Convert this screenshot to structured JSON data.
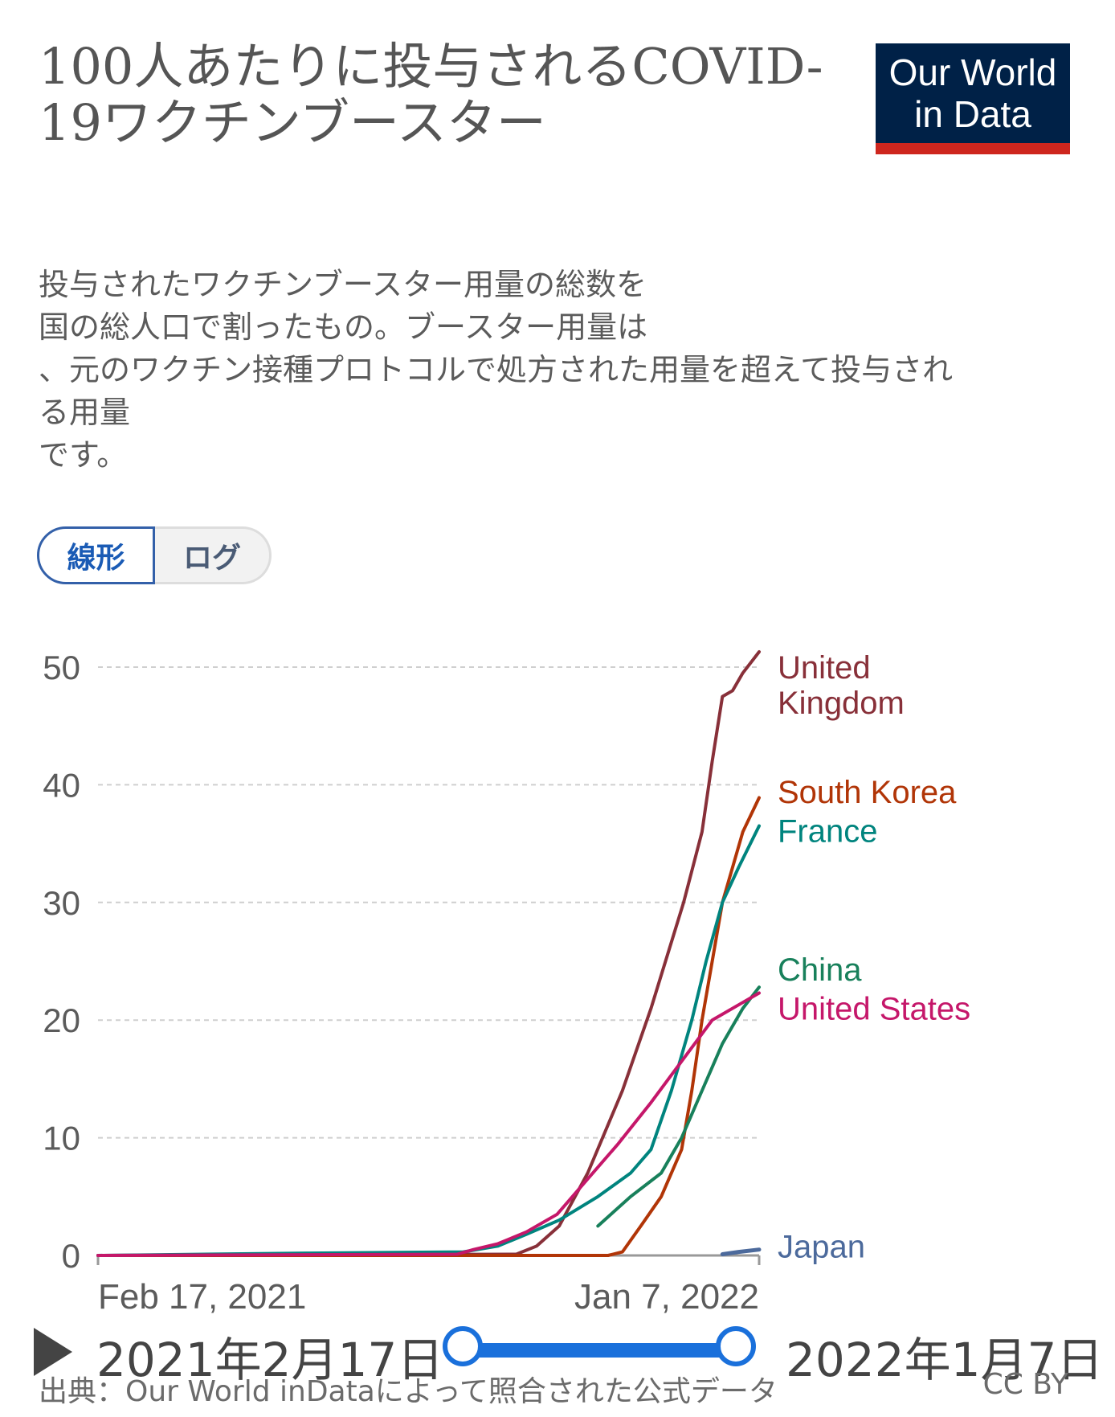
{
  "header": {
    "title": "100人あたりに投与されるCOVID-19ワクチンブースター",
    "logo_line1": "Our World",
    "logo_line2": "in Data"
  },
  "subtitle_lines": [
    "投与されたワクチンブースター用量の総数を",
    "国の総人口で割ったもの。ブースター用量は",
    "、元のワクチン接種プロトコルで処方された用量を超えて投与され",
    "る用量",
    "です。"
  ],
  "scale_toggle": {
    "linear_label": "線形",
    "log_label": "ログ",
    "selected": "linear"
  },
  "timeline": {
    "start_label": "2021年2月17日",
    "end_label": "2022年1月7日"
  },
  "footer": {
    "source": "出典：Our World inDataによって照合された公式データ",
    "license": "CC BY"
  },
  "colors": {
    "United Kingdom": "#883039",
    "South Korea": "#b13507",
    "France": "#00847e",
    "China": "#18805b",
    "United States": "#c5176a",
    "Japan": "#4c6a9c"
  },
  "chart_data": {
    "type": "line",
    "title": "100人あたりに投与されるCOVID-19ワクチンブースター",
    "xlabel": "",
    "ylabel": "",
    "x_range": [
      "2021-02-17",
      "2022-01-07"
    ],
    "x_ticks": [
      "Feb 17, 2021",
      "Jan 7, 2022"
    ],
    "ylim": [
      0,
      50
    ],
    "y_ticks": [
      0,
      10,
      20,
      30,
      40,
      50
    ],
    "grid": true,
    "legend": "labels at line ends (right)",
    "series": [
      {
        "name": "United Kingdom",
        "label_lines": [
          "United",
          "Kingdom"
        ],
        "points": [
          [
            "2021-02-17",
            0
          ],
          [
            "2021-09-10",
            0.1
          ],
          [
            "2021-09-20",
            0.8
          ],
          [
            "2021-10-01",
            2.5
          ],
          [
            "2021-10-15",
            7
          ],
          [
            "2021-11-01",
            14
          ],
          [
            "2021-11-15",
            21
          ],
          [
            "2021-12-01",
            30
          ],
          [
            "2021-12-10",
            36
          ],
          [
            "2021-12-15",
            42
          ],
          [
            "2021-12-20",
            47.5
          ],
          [
            "2021-12-25",
            48
          ],
          [
            "2021-12-30",
            49.5
          ],
          [
            "2022-01-07",
            51.3
          ]
        ]
      },
      {
        "name": "South Korea",
        "label_lines": [
          "South Korea"
        ],
        "points": [
          [
            "2021-02-17",
            0
          ],
          [
            "2021-10-25",
            0
          ],
          [
            "2021-11-01",
            0.3
          ],
          [
            "2021-11-10",
            2.5
          ],
          [
            "2021-11-20",
            5
          ],
          [
            "2021-11-30",
            9
          ],
          [
            "2021-12-05",
            14
          ],
          [
            "2021-12-10",
            20
          ],
          [
            "2021-12-15",
            25
          ],
          [
            "2021-12-20",
            30
          ],
          [
            "2021-12-25",
            33
          ],
          [
            "2021-12-30",
            36
          ],
          [
            "2022-01-07",
            38.9
          ]
        ]
      },
      {
        "name": "France",
        "label_lines": [
          "France"
        ],
        "points": [
          [
            "2021-02-17",
            0
          ],
          [
            "2021-06-01",
            0.2
          ],
          [
            "2021-08-15",
            0.3
          ],
          [
            "2021-09-01",
            0.8
          ],
          [
            "2021-09-15",
            1.8
          ],
          [
            "2021-10-01",
            3
          ],
          [
            "2021-10-20",
            5
          ],
          [
            "2021-11-05",
            7
          ],
          [
            "2021-11-15",
            9
          ],
          [
            "2021-11-25",
            14
          ],
          [
            "2021-12-05",
            20
          ],
          [
            "2021-12-12",
            25
          ],
          [
            "2021-12-20",
            30
          ],
          [
            "2021-12-28",
            33
          ],
          [
            "2022-01-07",
            36.5
          ]
        ]
      },
      {
        "name": "China",
        "label_lines": [
          "China"
        ],
        "points": [
          [
            "2021-10-20",
            2.5
          ],
          [
            "2021-11-05",
            5
          ],
          [
            "2021-11-20",
            7
          ],
          [
            "2021-11-30",
            10
          ],
          [
            "2021-12-10",
            14
          ],
          [
            "2021-12-20",
            18
          ],
          [
            "2021-12-30",
            21
          ],
          [
            "2022-01-07",
            22.8
          ]
        ]
      },
      {
        "name": "United States",
        "label_lines": [
          "United States"
        ],
        "points": [
          [
            "2021-02-17",
            0
          ],
          [
            "2021-08-12",
            0.1
          ],
          [
            "2021-08-20",
            0.5
          ],
          [
            "2021-09-01",
            1
          ],
          [
            "2021-09-15",
            2
          ],
          [
            "2021-09-30",
            3.5
          ],
          [
            "2021-10-15",
            6.5
          ],
          [
            "2021-10-30",
            9.5
          ],
          [
            "2021-11-15",
            13
          ],
          [
            "2021-11-30",
            16.5
          ],
          [
            "2021-12-15",
            20
          ],
          [
            "2021-12-30",
            21.5
          ],
          [
            "2022-01-07",
            22.3
          ]
        ]
      },
      {
        "name": "Japan",
        "label_lines": [
          "Japan"
        ],
        "points": [
          [
            "2021-12-20",
            0.1
          ],
          [
            "2021-12-28",
            0.3
          ],
          [
            "2022-01-07",
            0.5
          ]
        ]
      }
    ]
  }
}
